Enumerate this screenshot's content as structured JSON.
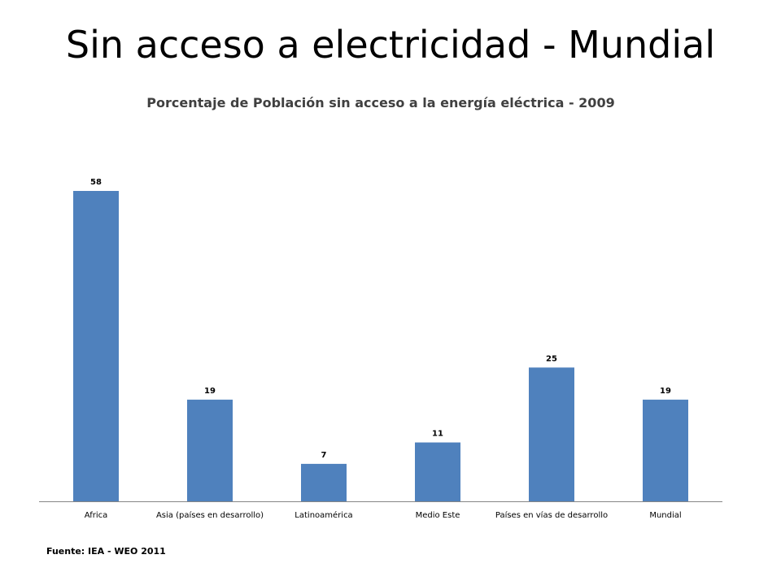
{
  "slide": {
    "title": "Sin acceso a electricidad - Mundial",
    "source": "Fuente: IEA - WEO 2011"
  },
  "colors": {
    "bar": "#4f81bd",
    "axis": "#868686",
    "label": "#000000"
  },
  "chart_data": {
    "type": "bar",
    "title": "Porcentaje de Población sin acceso a la energía eléctrica - 2009",
    "categories": [
      "Africa",
      "Asia  (países en desarrollo)",
      "Latinoamérica",
      "Medio Este",
      "Países en vías de desarrollo",
      "Mundial"
    ],
    "values": [
      58,
      19,
      7,
      11,
      25,
      19
    ],
    "xlabel": "",
    "ylabel": "",
    "ylim": [
      0,
      58
    ],
    "grid": false,
    "legend": "none",
    "data_labels": true
  }
}
